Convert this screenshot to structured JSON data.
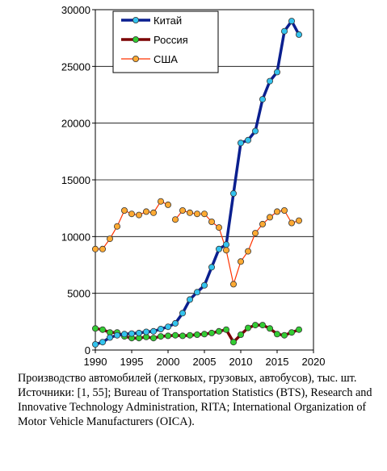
{
  "chart_data": {
    "type": "line",
    "xlim": [
      1990,
      2020
    ],
    "ylim": [
      0,
      30000
    ],
    "grid": true,
    "legend_position": "top-left",
    "x_ticks": [
      1990,
      1995,
      2000,
      2005,
      2010,
      2015,
      2020
    ],
    "y_ticks": [
      0,
      5000,
      10000,
      15000,
      20000,
      25000,
      30000
    ],
    "series": [
      {
        "name": "Китай",
        "color": "#0a1f8f",
        "marker": "#33c3ee",
        "x": [
          1990,
          1991,
          1992,
          1993,
          1994,
          1995,
          1996,
          1997,
          1998,
          1999,
          2000,
          2001,
          2002,
          2003,
          2004,
          2005,
          2006,
          2007,
          2008,
          2009,
          2010,
          2011,
          2012,
          2013,
          2014,
          2015,
          2016,
          2017,
          2018
        ],
        "y": [
          500,
          700,
          1100,
          1300,
          1400,
          1450,
          1500,
          1600,
          1650,
          1850,
          2050,
          2350,
          3250,
          4450,
          5100,
          5700,
          7300,
          8900,
          9300,
          13800,
          18250,
          18500,
          19300,
          22100,
          23700,
          24500,
          28100,
          29000,
          27800
        ]
      },
      {
        "name": "Россия",
        "color": "#7a0000",
        "marker": "#33cc33",
        "x": [
          1990,
          1991,
          1992,
          1993,
          1994,
          1995,
          1996,
          1997,
          1998,
          1999,
          2000,
          2001,
          2002,
          2003,
          2004,
          2005,
          2006,
          2007,
          2008,
          2009,
          2010,
          2011,
          2012,
          2013,
          2014,
          2015,
          2016,
          2017,
          2018
        ],
        "y": [
          1900,
          1800,
          1550,
          1550,
          1200,
          1050,
          1050,
          1150,
          1050,
          1200,
          1250,
          1300,
          1250,
          1300,
          1350,
          1400,
          1500,
          1650,
          1800,
          700,
          1350,
          1950,
          2200,
          2200,
          1900,
          1400,
          1300,
          1550,
          1800
        ]
      },
      {
        "name": "США",
        "color": "#ff3300",
        "marker": "#ffaa33",
        "x": [
          1990,
          1991,
          1992,
          1993,
          1994,
          1995,
          1996,
          1997,
          1998,
          1999,
          2000,
          null,
          2001,
          2002,
          2003,
          2004,
          2005,
          2006,
          2007,
          2008,
          2009,
          2010,
          2011,
          2012,
          2013,
          2014,
          2015,
          2016,
          2017,
          2018
        ],
        "y": [
          8900,
          8900,
          9800,
          10900,
          12300,
          12000,
          11900,
          12200,
          12100,
          13100,
          12800,
          null,
          11500,
          12300,
          12100,
          12000,
          12000,
          11300,
          10800,
          8800,
          5800,
          7800,
          8700,
          10300,
          11100,
          11700,
          12200,
          12300,
          11200,
          11400
        ]
      }
    ]
  },
  "caption": "Производство автомобилей (легковых, грузовых, автобусов), тыс. шт. Источники: [1, 55]; Bureau of Transportation Statistics (BTS), Research and Innovative Technology Administration, RITA;  International Organization of Motor Vehicle Manufacturers (OICA)."
}
